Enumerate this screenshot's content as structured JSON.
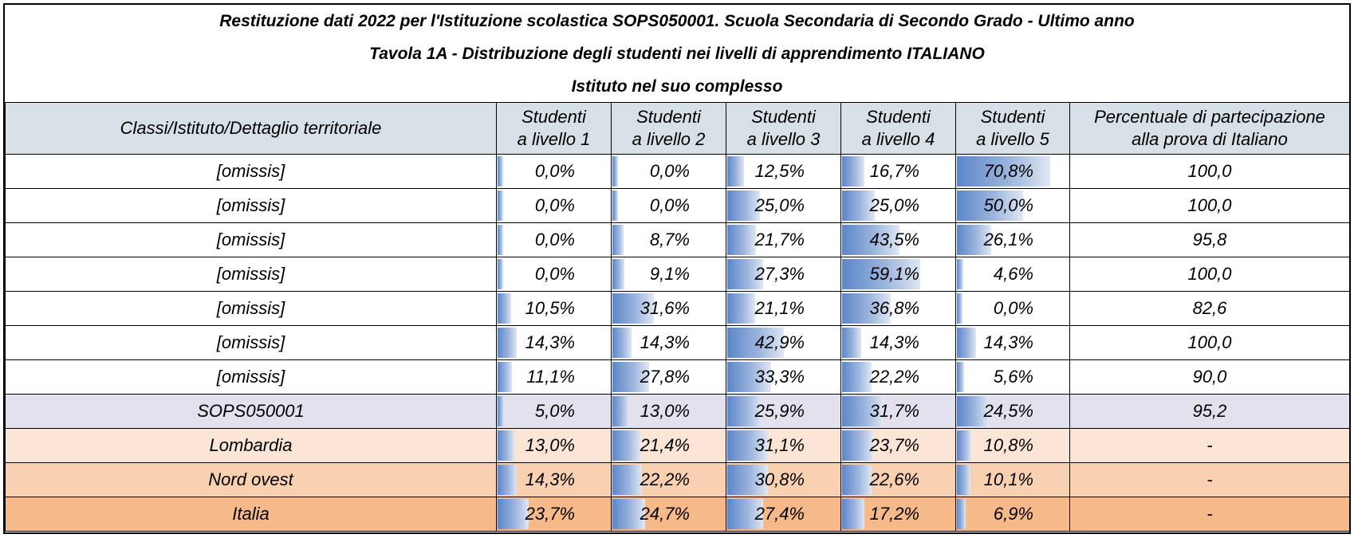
{
  "title_lines": [
    "Restituzione dati 2022 per l'Istituzione scolastica SOPS050001. Scuola Secondaria di Secondo Grado - Ultimo anno",
    "Tavola 1A - Distribuzione degli studenti nei livelli di apprendimento ITALIANO",
    "Istituto nel suo complesso"
  ],
  "header": {
    "col0": "Classi/Istituto/Dettaglio territoriale",
    "levels": [
      [
        "Studenti",
        "a livello 1"
      ],
      [
        "Studenti",
        "a livello 2"
      ],
      [
        "Studenti",
        "a livello 3"
      ],
      [
        "Studenti",
        "a livello 4"
      ],
      [
        "Studenti",
        "a livello 5"
      ]
    ],
    "participation": [
      "Percentuale di partecipazione",
      "alla prova di Italiano"
    ]
  },
  "rows": [
    {
      "label": "[omissis]",
      "type": "class",
      "levels": [
        "0,0%",
        "0,0%",
        "12,5%",
        "16,7%",
        "70,8%"
      ],
      "level_values": [
        0.0,
        0.0,
        12.5,
        16.7,
        70.8
      ],
      "participation": "100,0"
    },
    {
      "label": "[omissis]",
      "type": "class",
      "levels": [
        "0,0%",
        "0,0%",
        "25,0%",
        "25,0%",
        "50,0%"
      ],
      "level_values": [
        0.0,
        0.0,
        25.0,
        25.0,
        50.0
      ],
      "participation": "100,0"
    },
    {
      "label": "[omissis]",
      "type": "class",
      "levels": [
        "0,0%",
        "8,7%",
        "21,7%",
        "43,5%",
        "26,1%"
      ],
      "level_values": [
        0.0,
        8.7,
        21.7,
        43.5,
        26.1
      ],
      "participation": "95,8"
    },
    {
      "label": "[omissis]",
      "type": "class",
      "levels": [
        "0,0%",
        "9,1%",
        "27,3%",
        "59,1%",
        "4,6%"
      ],
      "level_values": [
        0.0,
        9.1,
        27.3,
        59.1,
        4.6
      ],
      "participation": "100,0"
    },
    {
      "label": "[omissis]",
      "type": "class",
      "levels": [
        "10,5%",
        "31,6%",
        "21,1%",
        "36,8%",
        "0,0%"
      ],
      "level_values": [
        10.5,
        31.6,
        21.1,
        36.8,
        0.0
      ],
      "participation": "82,6"
    },
    {
      "label": "[omissis]",
      "type": "class",
      "levels": [
        "14,3%",
        "14,3%",
        "42,9%",
        "14,3%",
        "14,3%"
      ],
      "level_values": [
        14.3,
        14.3,
        42.9,
        14.3,
        14.3
      ],
      "participation": "100,0"
    },
    {
      "label": "[omissis]",
      "type": "class",
      "levels": [
        "11,1%",
        "27,8%",
        "33,3%",
        "22,2%",
        "5,6%"
      ],
      "level_values": [
        11.1,
        27.8,
        33.3,
        22.2,
        5.6
      ],
      "participation": "90,0"
    },
    {
      "label": "SOPS050001",
      "type": "school",
      "levels": [
        "5,0%",
        "13,0%",
        "25,9%",
        "31,7%",
        "24,5%"
      ],
      "level_values": [
        5.0,
        13.0,
        25.9,
        31.7,
        24.5
      ],
      "participation": "95,2"
    },
    {
      "label": "Lombardia",
      "type": "region",
      "levels": [
        "13,0%",
        "21,4%",
        "31,1%",
        "23,7%",
        "10,8%"
      ],
      "level_values": [
        13.0,
        21.4,
        31.1,
        23.7,
        10.8
      ],
      "participation": "-"
    },
    {
      "label": "Nord ovest",
      "type": "area",
      "levels": [
        "14,3%",
        "22,2%",
        "30,8%",
        "22,6%",
        "10,1%"
      ],
      "level_values": [
        14.3,
        22.2,
        30.8,
        22.6,
        10.1
      ],
      "participation": "-"
    },
    {
      "label": "Italia",
      "type": "country",
      "levels": [
        "23,7%",
        "24,7%",
        "27,4%",
        "17,2%",
        "6,9%"
      ],
      "level_values": [
        23.7,
        24.7,
        27.4,
        17.2,
        6.9
      ],
      "participation": "-"
    }
  ],
  "colors": {
    "header_bg": "#d6e0e6",
    "school_bg": "#e4e1ee",
    "region_bg": "#fbe5d6",
    "area_bg": "#f9d0b0",
    "country_bg": "#f5b98a",
    "bar": "#5b86c8"
  }
}
